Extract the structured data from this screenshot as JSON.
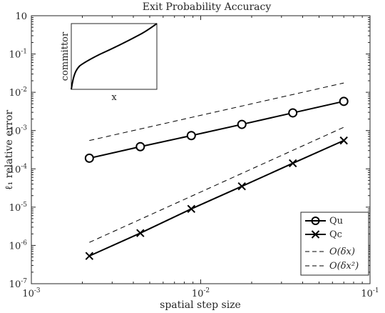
{
  "chart_data": {
    "type": "line",
    "title": "Exit Probability Accuracy",
    "xlabel": "spatial step size",
    "ylabel": "ℓ₁ relative error",
    "xscale": "log",
    "yscale": "log",
    "xlim": [
      0.001,
      0.1
    ],
    "ylim": [
      1e-07,
      1
    ],
    "x_ticks": [
      0.001,
      0.01,
      0.1
    ],
    "y_ticks": [
      1e-07,
      1e-06,
      1e-05,
      0.0001,
      0.001,
      0.01,
      0.1,
      1
    ],
    "series": [
      {
        "name": "Qu",
        "style": "solid",
        "marker": "circle",
        "x": [
          0.0022,
          0.0044,
          0.0088,
          0.0175,
          0.035,
          0.07
        ],
        "y": [
          0.00019,
          0.00038,
          0.00074,
          0.00145,
          0.0029,
          0.0058
        ]
      },
      {
        "name": "Qc",
        "style": "solid",
        "marker": "x",
        "x": [
          0.0022,
          0.0044,
          0.0088,
          0.0175,
          0.035,
          0.07
        ],
        "y": [
          5.3e-07,
          2.1e-06,
          9e-06,
          3.5e-05,
          0.00014,
          0.00055
        ]
      },
      {
        "name": "O(δx)",
        "style": "dashed",
        "marker": "none",
        "x": [
          0.0022,
          0.07
        ],
        "y": [
          0.00055,
          0.0175
        ]
      },
      {
        "name": "O(δx²)",
        "style": "dashed",
        "marker": "none",
        "x": [
          0.0022,
          0.07
        ],
        "y": [
          1.2e-06,
          0.00122
        ]
      }
    ],
    "legend": {
      "placement": "bottom-right"
    },
    "grid": false,
    "inset": {
      "xlabel": "x",
      "ylabel": "committor",
      "curve": "committor rising from 0 to 1 across the domain, steep near the left boundary"
    }
  }
}
